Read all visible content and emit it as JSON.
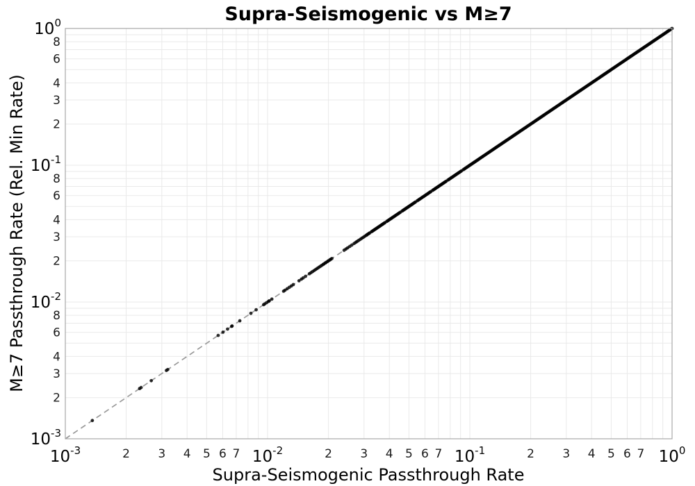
{
  "chart_data": {
    "type": "scatter",
    "title": "Supra-Seismogenic vs M≥7",
    "xlabel": "Supra-Seismogenic Passthrough Rate",
    "ylabel": "M≥7 Passthrough Rate (Rel. Min Rate)",
    "xscale": "log",
    "yscale": "log",
    "xlim": [
      0.001,
      1
    ],
    "ylim": [
      0.001,
      1
    ],
    "grid": true,
    "legend": false,
    "relationship": "all scatter points lie on the identity line y = x",
    "identity_line": {
      "style": "dashed",
      "from": [
        0.001,
        0.001
      ],
      "to": [
        1.0,
        1.0
      ]
    },
    "points": {
      "sparse_x": [
        0.00136,
        0.00233,
        0.00237,
        0.00266,
        0.00316,
        0.00321,
        0.0057,
        0.00602,
        0.00634,
        0.00664,
        0.00668,
        0.00729,
        0.00827,
        0.00878,
        0.00956,
        0.0097,
        0.0099
      ],
      "cluster_x": [
        0.0101,
        0.0102,
        0.0105,
        0.012,
        0.0122,
        0.0125,
        0.0128,
        0.0131,
        0.0134,
        0.0143,
        0.0147,
        0.015,
        0.0154,
        0.0161,
        0.0164,
        0.0167,
        0.017,
        0.0173,
        0.0176,
        0.0179,
        0.0182,
        0.0185,
        0.0188,
        0.019,
        0.0193,
        0.0195,
        0.0198,
        0.02,
        0.0203,
        0.0205,
        0.0208,
        0.0239,
        0.0244,
        0.0249,
        0.0255,
        0.0261,
        0.0268,
        0.0273,
        0.0277,
        0.0282,
        0.0287,
        0.0292,
        0.0297,
        0.0302,
        0.0307
      ],
      "dense_band": {
        "x_from": 0.031,
        "x_to": 1.0,
        "count": 340,
        "note": "visually continuous band of overlapping points on y = x from ~0.03 to 1.0, fully solid above 0.1"
      }
    },
    "axes": {
      "x_major_exponents": [
        -3,
        -2,
        -1,
        0
      ],
      "x_minor_digits": [
        2,
        3,
        4,
        5,
        6,
        7
      ],
      "x_minor_decades": [
        -3,
        -2,
        -1
      ],
      "y_major_exponents": [
        0,
        -1,
        -2,
        -3
      ],
      "y_minor_digits": [
        8,
        6,
        4,
        3,
        2
      ],
      "y_minor_decades": [
        -1,
        -2,
        -3
      ],
      "grid_digits": [
        2,
        3,
        4,
        5,
        6,
        7,
        8,
        9
      ]
    },
    "colors": {
      "point": "#000000",
      "dashed_line": "#999999",
      "grid": "#e9e9e9",
      "spine": "#a8a8a8",
      "text": "#000000",
      "background": "#ffffff"
    }
  }
}
